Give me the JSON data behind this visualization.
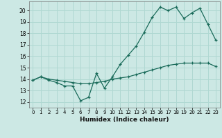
{
  "xlabel": "Humidex (Indice chaleur)",
  "ylabel": "",
  "bg_color": "#cce8e4",
  "grid_color": "#b0d8d2",
  "line_color": "#1a6b5a",
  "xlim": [
    -0.5,
    23.5
  ],
  "ylim": [
    11.5,
    20.8
  ],
  "yticks": [
    12,
    13,
    14,
    15,
    16,
    17,
    18,
    19,
    20
  ],
  "xticks": [
    0,
    1,
    2,
    3,
    4,
    5,
    6,
    7,
    8,
    9,
    10,
    11,
    12,
    13,
    14,
    15,
    16,
    17,
    18,
    19,
    20,
    21,
    22,
    23
  ],
  "line1_x": [
    0,
    1,
    2,
    3,
    4,
    5,
    6,
    7,
    8,
    9,
    10,
    11,
    12,
    13,
    14,
    15,
    16,
    17,
    18,
    19,
    20,
    21,
    22,
    23
  ],
  "line1_y": [
    13.9,
    14.2,
    13.9,
    13.7,
    13.4,
    13.4,
    12.1,
    12.4,
    14.5,
    13.2,
    14.2,
    15.3,
    16.1,
    16.9,
    18.1,
    19.4,
    20.3,
    20.0,
    20.3,
    19.3,
    19.8,
    20.2,
    18.8,
    17.4
  ],
  "line2_x": [
    0,
    1,
    2,
    3,
    4,
    5,
    6,
    7,
    8,
    9,
    10,
    11,
    12,
    13,
    14,
    15,
    16,
    17,
    18,
    19,
    20,
    21,
    22,
    23
  ],
  "line2_y": [
    13.9,
    14.2,
    14.0,
    13.9,
    13.8,
    13.7,
    13.6,
    13.6,
    13.7,
    13.8,
    14.0,
    14.1,
    14.2,
    14.4,
    14.6,
    14.8,
    15.0,
    15.2,
    15.3,
    15.4,
    15.4,
    15.4,
    15.4,
    15.1
  ]
}
